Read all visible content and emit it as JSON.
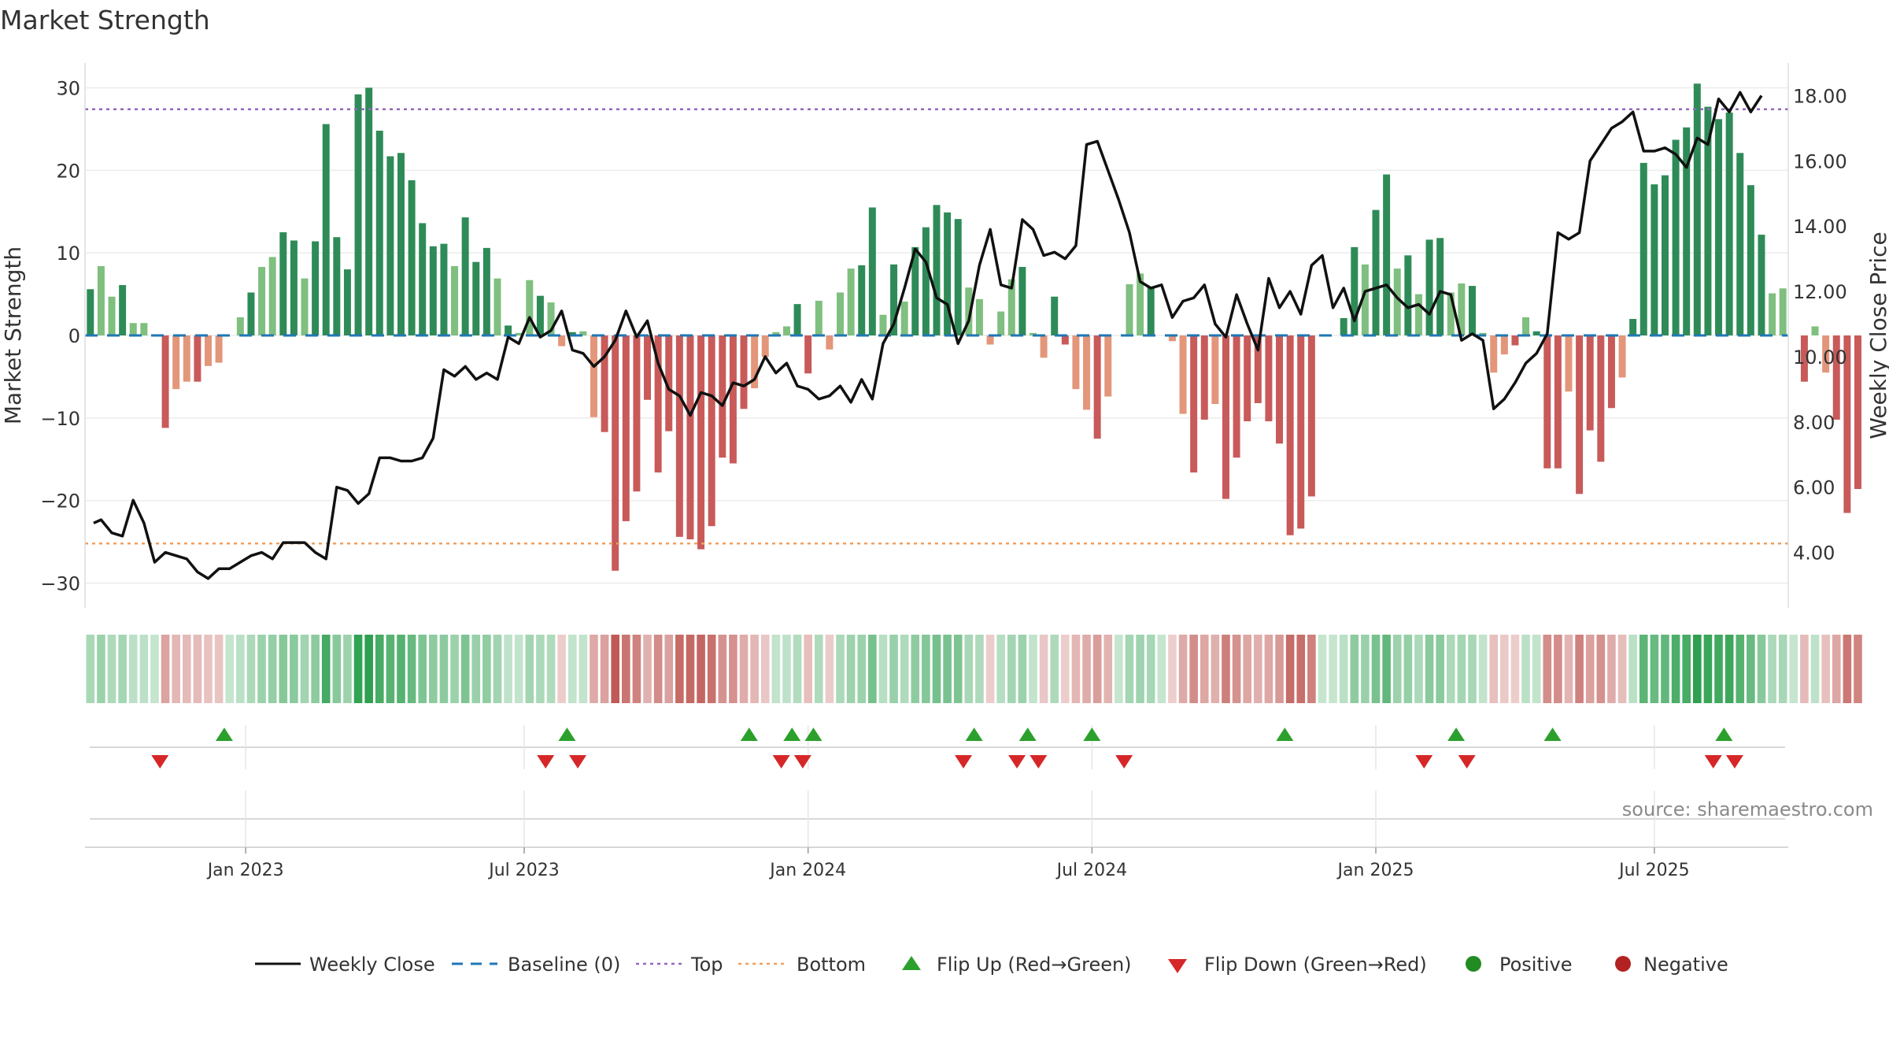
{
  "chart_data": {
    "type": "bar",
    "title": "Market Strength",
    "source": "source: sharemaestro.com",
    "ylabel": "Market Strength",
    "y2label": "Weekly Close Price",
    "ylim": [
      -33,
      33
    ],
    "y2lim": [
      2.3,
      19.0
    ],
    "yticks": [
      30,
      20,
      10,
      0,
      -10,
      -20,
      -30
    ],
    "ytick_labels": [
      "30",
      "20",
      "10",
      "0",
      "−10",
      "−20",
      "−30"
    ],
    "y2ticks": [
      18,
      16,
      14,
      12,
      10,
      8,
      6,
      4
    ],
    "y2tick_labels": [
      "18.00",
      "16.00",
      "14.00",
      "12.00",
      "10.00",
      "8.00",
      "6.00",
      "4.00"
    ],
    "top_level": 27.4,
    "bottom_level": -25.2,
    "baseline": 0,
    "x_start_week": 0,
    "x_end_week": 158,
    "xtick_weeks": [
      14.5,
      40.5,
      67,
      93.5,
      120,
      146
    ],
    "xtick_labels": [
      "Jan 2023",
      "Jul 2023",
      "Jan 2024",
      "Jul 2024",
      "Jan 2025",
      "Jul 2025"
    ],
    "strength": [
      5.6,
      8.4,
      4.7,
      6.1,
      1.5,
      1.5,
      0,
      -11.2,
      -6.5,
      -5.6,
      -5.6,
      -3.7,
      -3.3,
      0,
      2.2,
      5.2,
      8.3,
      9.5,
      12.5,
      11.5,
      6.9,
      11.4,
      25.6,
      11.9,
      8.0,
      29.2,
      30.0,
      24.8,
      21.7,
      22.1,
      18.8,
      13.6,
      10.8,
      11.1,
      8.4,
      14.3,
      8.9,
      10.6,
      6.9,
      1.2,
      0.3,
      6.7,
      4.8,
      4.0,
      -1.3,
      0.4,
      0.5,
      -9.9,
      -11.7,
      -28.5,
      -22.5,
      -18.9,
      -7.8,
      -16.6,
      -11.6,
      -24.4,
      -24.7,
      -25.9,
      -23.1,
      -14.8,
      -15.5,
      -8.9,
      -6.4,
      -2.6,
      0.4,
      1.1,
      3.8,
      -4.6,
      4.2,
      -1.7,
      5.2,
      8.1,
      8.5,
      15.5,
      2.5,
      8.6,
      4.1,
      10.7,
      13.1,
      15.8,
      14.9,
      14.1,
      5.8,
      4.4,
      -1.1,
      2.9,
      6.8,
      8.3,
      0.3,
      -2.7,
      4.7,
      -1.1,
      -6.5,
      -9.0,
      -12.5,
      -7.4,
      0,
      6.2,
      7.5,
      5.9,
      0,
      -0.7,
      -9.5,
      -16.6,
      -10.2,
      -8.3,
      -19.8,
      -14.8,
      -10.4,
      -8.2,
      -10.4,
      -13.1,
      -24.2,
      -23.4,
      -19.5,
      0,
      0,
      2.1,
      10.7,
      8.6,
      15.2,
      19.5,
      8.1,
      9.7,
      5.0,
      11.6,
      11.8,
      5.2,
      6.3,
      6.0,
      0.3,
      -4.5,
      -2.3,
      -1.2,
      2.2,
      0.5,
      -16.1,
      -16.1,
      -6.8,
      -19.2,
      -11.5,
      -15.3,
      -8.8,
      -5.1,
      2.0,
      20.9,
      18.3,
      19.4,
      23.7,
      25.2,
      30.5,
      27.7,
      26.2,
      27.0,
      22.1,
      18.2,
      12.2,
      5.1,
      5.7,
      0,
      -5.6,
      1.1,
      -4.5,
      -10.2,
      -21.5,
      -18.6
    ],
    "price_points": [
      [
        0.3,
        4.9
      ],
      [
        1,
        5.0
      ],
      [
        2,
        4.6
      ],
      [
        3,
        4.5
      ],
      [
        4,
        5.6
      ],
      [
        5,
        4.9
      ],
      [
        6,
        3.7
      ],
      [
        7,
        4.0
      ],
      [
        8,
        3.9
      ],
      [
        9,
        3.8
      ],
      [
        10,
        3.4
      ],
      [
        11,
        3.2
      ],
      [
        12,
        3.5
      ],
      [
        13,
        3.5
      ],
      [
        14,
        3.7
      ],
      [
        15,
        3.9
      ],
      [
        16,
        4.0
      ],
      [
        17,
        3.8
      ],
      [
        18,
        4.3
      ],
      [
        19,
        4.3
      ],
      [
        20,
        4.3
      ],
      [
        21,
        4.0
      ],
      [
        22,
        3.8
      ],
      [
        23,
        6.0
      ],
      [
        24,
        5.9
      ],
      [
        25,
        5.5
      ],
      [
        26,
        5.8
      ],
      [
        27,
        6.9
      ],
      [
        28,
        6.9
      ],
      [
        29,
        6.8
      ],
      [
        30,
        6.8
      ],
      [
        31,
        6.9
      ],
      [
        32,
        7.5
      ],
      [
        33,
        9.6
      ],
      [
        34,
        9.4
      ],
      [
        35,
        9.7
      ],
      [
        36,
        9.3
      ],
      [
        37,
        9.5
      ],
      [
        38,
        9.3
      ],
      [
        39,
        10.6
      ],
      [
        40,
        10.4
      ],
      [
        41,
        11.2
      ],
      [
        42,
        10.6
      ],
      [
        43,
        10.8
      ],
      [
        44,
        11.4
      ],
      [
        45,
        10.2
      ],
      [
        46,
        10.1
      ],
      [
        47,
        9.7
      ],
      [
        48,
        10.0
      ],
      [
        49,
        10.5
      ],
      [
        50,
        11.4
      ],
      [
        51,
        10.6
      ],
      [
        52,
        11.1
      ],
      [
        53,
        9.8
      ],
      [
        54,
        9.0
      ],
      [
        55,
        8.8
      ],
      [
        56,
        8.2
      ],
      [
        57,
        8.9
      ],
      [
        58,
        8.8
      ],
      [
        59,
        8.5
      ],
      [
        60,
        9.2
      ],
      [
        61,
        9.1
      ],
      [
        62,
        9.3
      ],
      [
        63,
        10.0
      ],
      [
        64,
        9.5
      ],
      [
        65,
        9.8
      ],
      [
        66,
        9.1
      ],
      [
        67,
        9.0
      ],
      [
        68,
        8.7
      ],
      [
        69,
        8.8
      ],
      [
        70,
        9.1
      ],
      [
        71,
        8.6
      ],
      [
        72,
        9.3
      ],
      [
        73,
        8.7
      ],
      [
        74,
        10.4
      ],
      [
        75,
        11.0
      ],
      [
        76,
        12.1
      ],
      [
        77,
        13.3
      ],
      [
        78,
        12.9
      ],
      [
        79,
        11.8
      ],
      [
        80,
        11.6
      ],
      [
        81,
        10.4
      ],
      [
        82,
        11.1
      ],
      [
        83,
        12.8
      ],
      [
        84,
        13.9
      ],
      [
        85,
        12.2
      ],
      [
        86,
        12.1
      ],
      [
        87,
        14.2
      ],
      [
        88,
        13.9
      ],
      [
        89,
        13.1
      ],
      [
        90,
        13.2
      ],
      [
        91,
        13.0
      ],
      [
        92,
        13.4
      ],
      [
        93,
        16.5
      ],
      [
        94,
        16.6
      ],
      [
        95,
        15.7
      ],
      [
        96,
        14.8
      ],
      [
        97,
        13.8
      ],
      [
        98,
        12.3
      ],
      [
        99,
        12.1
      ],
      [
        100,
        12.2
      ],
      [
        101,
        11.2
      ],
      [
        102,
        11.7
      ],
      [
        103,
        11.8
      ],
      [
        104,
        12.2
      ],
      [
        105,
        11.0
      ],
      [
        106,
        10.6
      ],
      [
        107,
        11.9
      ],
      [
        108,
        11.0
      ],
      [
        109,
        10.2
      ],
      [
        110,
        12.4
      ],
      [
        111,
        11.5
      ],
      [
        112,
        12.0
      ],
      [
        113,
        11.3
      ],
      [
        114,
        12.8
      ],
      [
        115,
        13.1
      ],
      [
        116,
        11.5
      ],
      [
        117,
        12.1
      ],
      [
        118,
        11.1
      ],
      [
        119,
        12.0
      ],
      [
        120,
        12.1
      ],
      [
        121,
        12.2
      ],
      [
        122,
        11.8
      ],
      [
        123,
        11.5
      ],
      [
        124,
        11.6
      ],
      [
        125,
        11.3
      ],
      [
        126,
        12.0
      ],
      [
        127,
        11.9
      ],
      [
        128,
        10.5
      ],
      [
        129,
        10.7
      ],
      [
        130,
        10.5
      ],
      [
        131,
        8.4
      ],
      [
        132,
        8.7
      ],
      [
        133,
        9.2
      ],
      [
        134,
        9.8
      ],
      [
        135,
        10.1
      ],
      [
        136,
        10.7
      ],
      [
        137,
        13.8
      ],
      [
        138,
        13.6
      ],
      [
        139,
        13.8
      ],
      [
        140,
        16.0
      ],
      [
        141,
        16.5
      ],
      [
        142,
        17.0
      ],
      [
        143,
        17.2
      ],
      [
        144,
        17.5
      ],
      [
        145,
        16.3
      ],
      [
        146,
        16.3
      ],
      [
        147,
        16.4
      ],
      [
        148,
        16.2
      ],
      [
        149,
        15.8
      ],
      [
        150,
        16.7
      ],
      [
        151,
        16.5
      ],
      [
        152,
        17.9
      ],
      [
        153,
        17.5
      ],
      [
        154,
        18.1
      ],
      [
        155,
        17.5
      ],
      [
        156,
        18.0
      ]
    ],
    "heat_strip": "computed: color per bar by sign and magnitude",
    "flip_up_weeks": [
      12.5,
      44.5,
      61.5,
      65.5,
      67.5,
      82.5,
      87.5,
      93.5,
      111.5,
      127.5,
      136.5,
      152.5
    ],
    "flip_down_weeks": [
      6.5,
      42.5,
      45.5,
      64.5,
      66.5,
      81.5,
      86.5,
      88.5,
      96.5,
      124.5,
      128.5,
      151.5,
      153.5
    ],
    "colors": {
      "strong_pos": "#2e8b57",
      "weak_pos": "#7fbf7f",
      "strong_neg": "#c85a5a",
      "weak_neg": "#e3967a",
      "price": "#111111",
      "baseline": "#1f77b4",
      "top": "#9467bd",
      "bottom": "#f0a060",
      "flip_up": "#2ca02c",
      "flip_down": "#d62728",
      "positive": "#228b22",
      "negative": "#b22222"
    },
    "legend": [
      {
        "label": "Weekly Close",
        "marker": "solid-line"
      },
      {
        "label": "Baseline (0)",
        "marker": "dashed-line"
      },
      {
        "label": "Top",
        "marker": "dotted-line"
      },
      {
        "label": "Bottom",
        "marker": "dotted-line"
      },
      {
        "label": "Flip Up (Red→Green)",
        "marker": "triangle-up"
      },
      {
        "label": "Flip Down (Green→Red)",
        "marker": "triangle-down"
      },
      {
        "label": "Positive",
        "marker": "circle"
      },
      {
        "label": "Negative",
        "marker": "circle"
      }
    ]
  }
}
